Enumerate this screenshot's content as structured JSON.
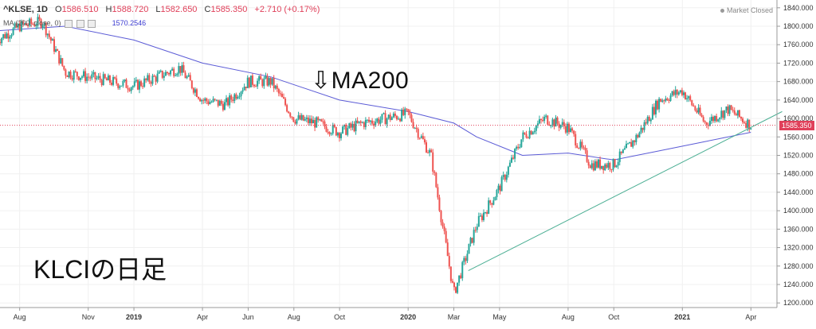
{
  "header": {
    "symbol": "^KLSE, 1D",
    "open_label": "O",
    "open": "1586.510",
    "high_label": "H",
    "high": "1588.720",
    "low_label": "L",
    "low": "1582.650",
    "close_label": "C",
    "close": "1585.350",
    "change": "+2.710 (+0.17%)",
    "indicator": "MA (200, close, 0)",
    "indicator_value": "1570.2546",
    "market_status": "Market Closed"
  },
  "annotations": {
    "ma_arrow": "⇩",
    "ma_label": "MA200",
    "title": "KLCIの日足"
  },
  "colors": {
    "up": "#26a69a",
    "down": "#ef5350",
    "ma": "#5b5bd6",
    "trendline": "#4caf94",
    "last_price": "#e0405a"
  },
  "chart_data": {
    "type": "line",
    "title": "",
    "xlabel": "",
    "ylabel": "",
    "ylim": [
      1190,
      1850
    ],
    "x_ticks": [
      "Aug",
      "Nov",
      "2019",
      "Apr",
      "Jun",
      "Aug",
      "Oct",
      "2020",
      "Mar",
      "May",
      "Aug",
      "Oct",
      "2021",
      "Apr"
    ],
    "y_ticks": [
      1200,
      1240,
      1280,
      1320,
      1360,
      1400,
      1440,
      1480,
      1520,
      1560,
      1600,
      1640,
      1680,
      1720,
      1760,
      1800,
      1840
    ],
    "y_tick_labels": [
      "1200.000",
      "1240.000",
      "1280.000",
      "1320.000",
      "1360.000",
      "1400.000",
      "1440.000",
      "1480.000",
      "1520.000",
      "1560.000",
      "1600.000",
      "1640.000",
      "1680.000",
      "1720.000",
      "1760.000",
      "1800.000",
      "1840.000"
    ],
    "last_price": "1585.350",
    "series": [
      {
        "kind": "price",
        "x": [
          "2018-07",
          "2018-08",
          "2018-09",
          "2018-10",
          "2018-11",
          "2018-12",
          "2019-01",
          "2019-02",
          "2019-03",
          "2019-04",
          "2019-05",
          "2019-06",
          "2019-07",
          "2019-08",
          "2019-09",
          "2019-10",
          "2019-11",
          "2019-12",
          "2020-01",
          "2020-02",
          "2020-03",
          "2020-04",
          "2020-05",
          "2020-06",
          "2020-07",
          "2020-08",
          "2020-09",
          "2020-10",
          "2020-11",
          "2020-12",
          "2021-01",
          "2021-02",
          "2021-03",
          "2021-04"
        ],
        "values": [
          1770,
          1800,
          1810,
          1700,
          1690,
          1680,
          1670,
          1690,
          1710,
          1640,
          1630,
          1680,
          1680,
          1600,
          1590,
          1570,
          1590,
          1600,
          1610,
          1520,
          1220,
          1370,
          1450,
          1560,
          1600,
          1580,
          1500,
          1500,
          1560,
          1640,
          1660,
          1590,
          1620,
          1585
        ]
      },
      {
        "kind": "ma",
        "x": [
          "2018-07",
          "2018-10",
          "2019-01",
          "2019-04",
          "2019-07",
          "2019-10",
          "2020-01",
          "2020-03",
          "2020-04",
          "2020-06",
          "2020-08",
          "2020-10",
          "2020-12",
          "2021-02",
          "2021-04"
        ],
        "values": [
          1790,
          1800,
          1770,
          1720,
          1690,
          1640,
          1615,
          1590,
          1560,
          1520,
          1525,
          1510,
          1530,
          1550,
          1570
        ]
      },
      {
        "kind": "trendline",
        "x": [
          "2020-03",
          "2021-04"
        ],
        "values": [
          1270,
          1615
        ]
      }
    ]
  }
}
